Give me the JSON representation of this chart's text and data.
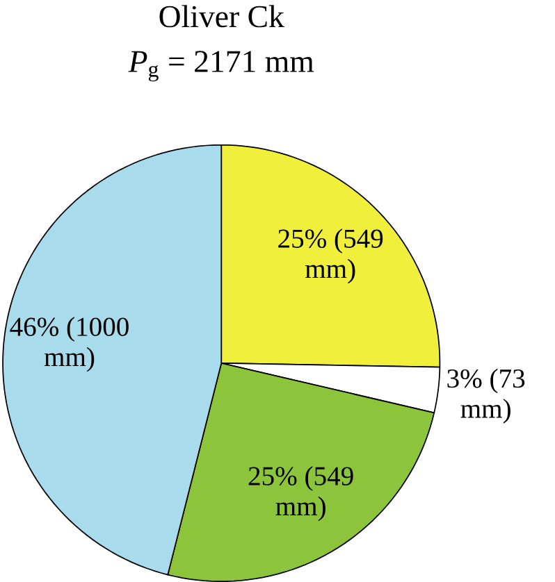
{
  "chart_data": {
    "type": "pie",
    "title": "Oliver Ck",
    "subtitle": "*P*$_{g}$ = 2171 mm",
    "categories": [
      null,
      null,
      null,
      null
    ],
    "values": [
      549,
      73,
      549,
      1000
    ],
    "colors": [
      "#f0f03c",
      "#ffffff",
      "#8cc43c",
      "#a8dcec"
    ],
    "value_labels": [
      "25% (549 mm)",
      "3% (73 mm)",
      "25% (549 mm)",
      "46% (1000 mm)"
    ]
  }
}
